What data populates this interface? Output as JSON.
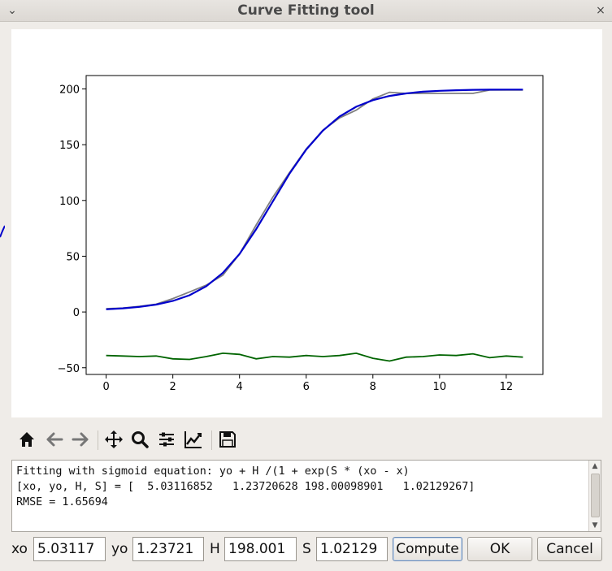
{
  "window": {
    "title": "Curve Fitting tool",
    "minimize_glyph": "⌄",
    "close_glyph": "×"
  },
  "toolbar": {
    "icons": [
      "home-icon",
      "back-arrow-icon",
      "forward-arrow-icon",
      "pan-icon",
      "zoom-icon",
      "configure-subplots-icon",
      "edit-axis-icon",
      "save-icon"
    ]
  },
  "output": {
    "lines": [
      "Fitting with sigmoid equation: yo + H /(1 + exp(S * (xo - x)",
      "[xo, yo, H, S] = [  5.03116852   1.23720628 198.00098901   1.02129267]",
      "RMSE = 1.65694"
    ]
  },
  "params": {
    "xo": {
      "label": "xo",
      "value": "5.03117"
    },
    "yo": {
      "label": "yo",
      "value": "1.23721"
    },
    "H": {
      "label": "H",
      "value": "198.001"
    },
    "S": {
      "label": "S",
      "value": "1.02129"
    }
  },
  "buttons": {
    "compute": "Compute",
    "ok": "OK",
    "cancel": "Cancel"
  },
  "chart_data": {
    "type": "line",
    "title": "",
    "xlabel": "",
    "ylabel": "",
    "xlim": [
      -0.6,
      13.1
    ],
    "ylim": [
      -56,
      212
    ],
    "xticks": [
      0,
      2,
      4,
      6,
      8,
      10,
      12
    ],
    "yticks": [
      -50,
      0,
      50,
      100,
      150,
      200
    ],
    "x": [
      0,
      0.5,
      1,
      1.5,
      2,
      2.5,
      3,
      3.5,
      4,
      4.5,
      5,
      5.5,
      6,
      6.5,
      7,
      7.5,
      8,
      8.5,
      9,
      9.5,
      10,
      10.5,
      11,
      11.5,
      12,
      12.5
    ],
    "series": [
      {
        "color": "#808080",
        "values": [
          3,
          3.5,
          5,
          7,
          12,
          18,
          24,
          33,
          52,
          78,
          103,
          125,
          146,
          163,
          174,
          181,
          191,
          197,
          196,
          196,
          196,
          196,
          196,
          199,
          199,
          199
        ]
      },
      {
        "color": "#0000cc",
        "values": [
          2.4,
          3.3,
          4.6,
          6.6,
          9.9,
          15.0,
          23.0,
          35.0,
          52.0,
          74.3,
          99.2,
          124.0,
          145.6,
          162.6,
          175.3,
          184.0,
          189.9,
          193.7,
          196.0,
          197.5,
          198.3,
          198.8,
          199.2,
          199.3,
          199.4,
          199.4
        ]
      },
      {
        "color": "#006400",
        "values": [
          -39,
          -39.5,
          -40,
          -39.5,
          -42,
          -42.5,
          -40,
          -37,
          -38,
          -42,
          -40,
          -40.5,
          -39,
          -40,
          -39,
          -37,
          -41.5,
          -44,
          -40.5,
          -40,
          -38.5,
          -39,
          -37.5,
          -41,
          -39.5,
          -40.5
        ]
      }
    ]
  }
}
